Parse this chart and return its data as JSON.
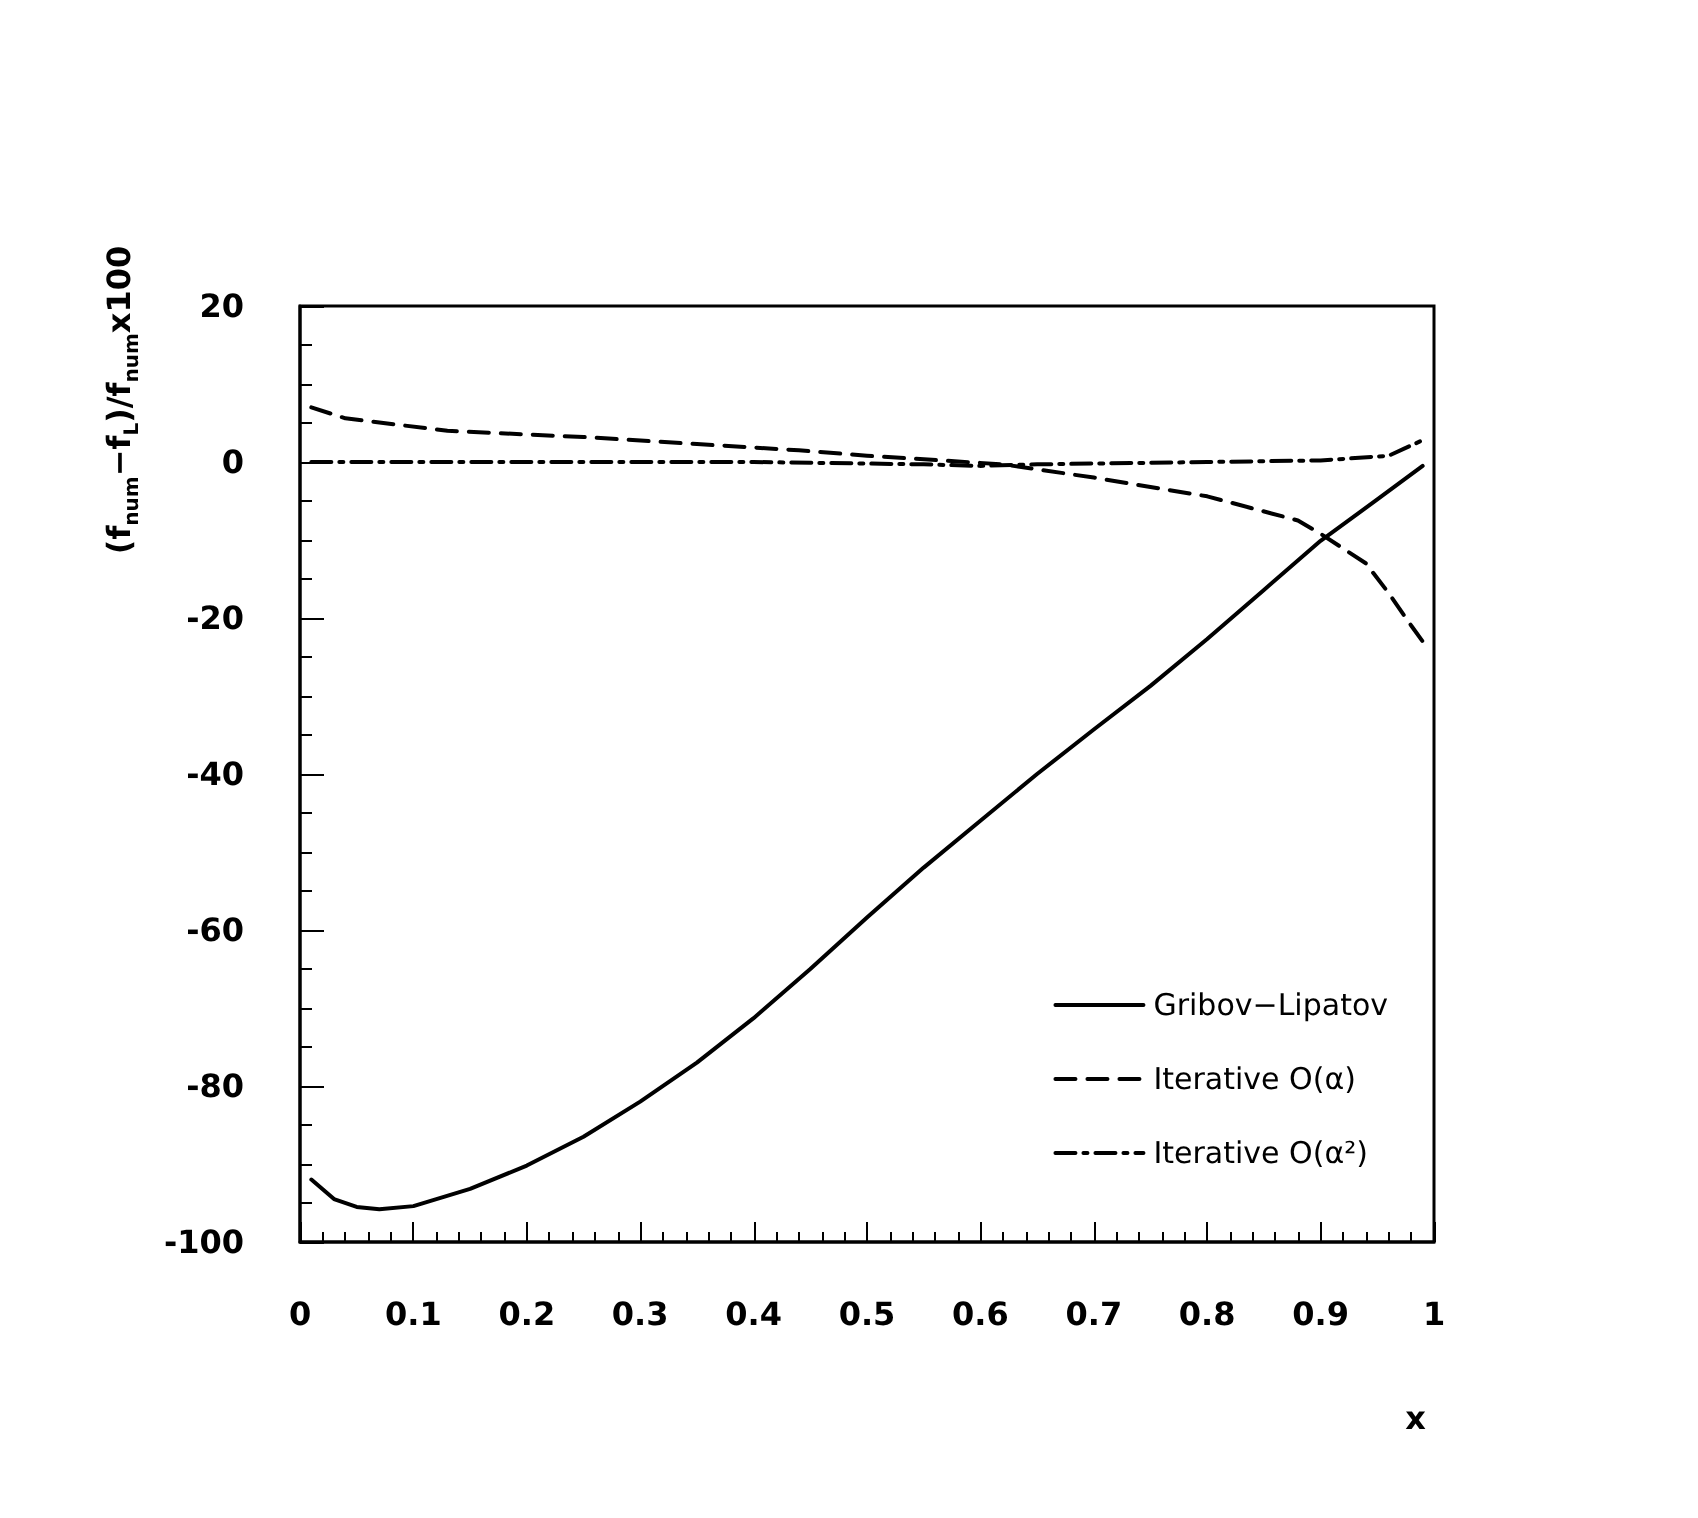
{
  "chart_data": {
    "type": "line",
    "xlabel": "x",
    "ylabel": "(f$_{num}$−f$_{L}$)/f$_{num}$x100",
    "xlim": [
      0,
      1
    ],
    "xticks": [
      0,
      0.1,
      0.2,
      0.3,
      0.4,
      0.5,
      0.6,
      0.7,
      0.8,
      0.9,
      1
    ],
    "ylim": [
      -100,
      20
    ],
    "yticks": [
      -100,
      -80,
      -60,
      -40,
      -20,
      0,
      20
    ],
    "grid": false,
    "legend": "bottom right",
    "marker": "none",
    "series": [
      {
        "name": "Gribov−Lipatov",
        "color": "#000000",
        "line_style": "solid",
        "x": [
          0.01,
          0.03,
          0.05,
          0.07,
          0.1,
          0.15,
          0.2,
          0.25,
          0.3,
          0.35,
          0.4,
          0.45,
          0.5,
          0.55,
          0.6,
          0.65,
          0.7,
          0.75,
          0.8,
          0.85,
          0.9,
          0.95,
          0.99
        ],
        "values": [
          -92,
          -94.5,
          -95.5,
          -95.8,
          -95.4,
          -93.2,
          -90.2,
          -86.5,
          -82,
          -77,
          -71.3,
          -65,
          -58.4,
          -52,
          -46,
          -40,
          -34.3,
          -28.7,
          -22.7,
          -16.4,
          -10.1,
          -4.8,
          -0.5
        ]
      },
      {
        "name": "Iterative O(α)",
        "color": "#000000",
        "line_style": "dashed",
        "x": [
          0.01,
          0.04,
          0.13,
          0.25,
          0.35,
          0.44,
          0.5,
          0.62,
          0.7,
          0.8,
          0.88,
          0.9,
          0.94,
          0.96,
          0.98,
          0.99
        ],
        "values": [
          7,
          5.6,
          4,
          3.2,
          2.3,
          1.5,
          0.8,
          -0.3,
          -2,
          -4.4,
          -7.5,
          -9.2,
          -13,
          -16.8,
          -21,
          -23
        ]
      },
      {
        "name": "Iterative O(α²)",
        "color": "#000000",
        "line_style": "dashdot",
        "x": [
          0.01,
          0.2,
          0.4,
          0.55,
          0.6,
          0.65,
          0.8,
          0.9,
          0.96,
          0.99
        ],
        "values": [
          0,
          0,
          0,
          -0.3,
          -0.5,
          -0.3,
          0,
          0.2,
          0.8,
          2.8
        ]
      }
    ]
  }
}
